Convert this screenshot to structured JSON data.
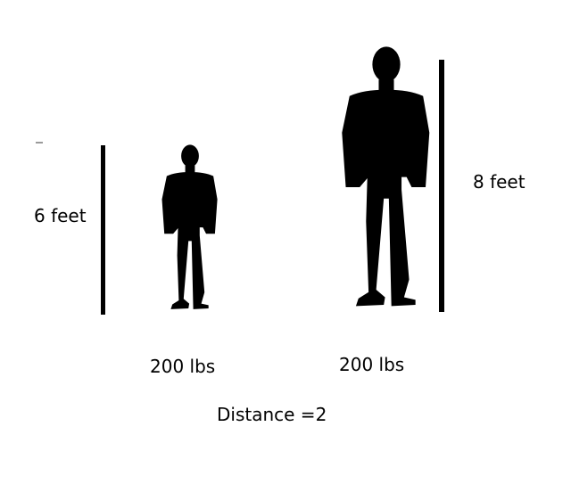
{
  "diagram": {
    "left_person": {
      "height_label": "6 feet",
      "weight_label": "200 lbs"
    },
    "right_person": {
      "height_label": "8 feet",
      "weight_label": "200 lbs"
    },
    "distance_label": "Distance =2",
    "colors": {
      "background": "#ffffff",
      "silhouette": "#000000",
      "bar": "#000000"
    },
    "icons": {
      "person": "standing-man-silhouette-icon"
    }
  }
}
